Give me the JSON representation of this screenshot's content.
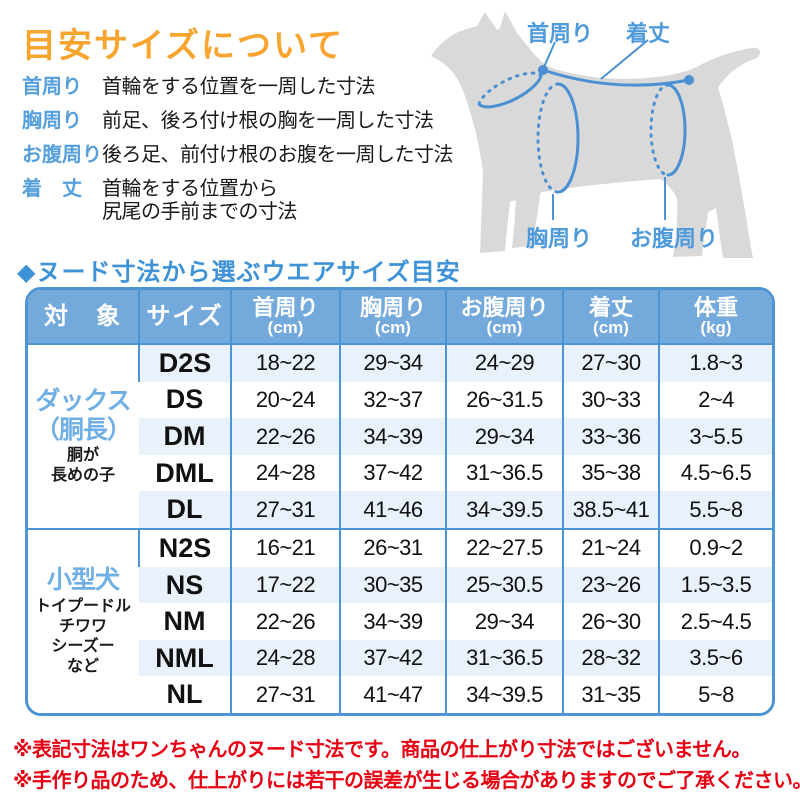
{
  "page": {
    "title": "目安サイズについて",
    "section_title": "◆ヌード寸法から選ぶウエアサイズ目安"
  },
  "legend": {
    "items": [
      {
        "term": "首周り",
        "desc": "首輪をする位置を一周した寸法"
      },
      {
        "term": "胸周り",
        "desc": "前足、後ろ付け根の胸を一周した寸法"
      },
      {
        "term": "お腹周り",
        "desc": "後ろ足、前付け根のお腹を一周した寸法"
      },
      {
        "term": "着　丈",
        "desc": "首輪をする位置から\n尻尾の手前までの寸法"
      }
    ]
  },
  "diagram": {
    "labels": {
      "neck": "首周り",
      "length": "着丈",
      "chest": "胸周り",
      "belly": "お腹周り"
    }
  },
  "table": {
    "headers": [
      {
        "label": "対　象",
        "unit": ""
      },
      {
        "label": "サイズ",
        "unit": ""
      },
      {
        "label": "首周り",
        "unit": "(cm)"
      },
      {
        "label": "胸周り",
        "unit": "(cm)"
      },
      {
        "label": "お腹周り",
        "unit": "(cm)"
      },
      {
        "label": "着丈",
        "unit": "(cm)"
      },
      {
        "label": "体重",
        "unit": "(kg)"
      }
    ],
    "groups": [
      {
        "name": "ダックス\n（胴長）",
        "sub": "胴が\n長めの子",
        "rows": [
          {
            "size": "D2S",
            "values": [
              "18~22",
              "29~34",
              "24~29",
              "27~30",
              "1.8~3"
            ]
          },
          {
            "size": "DS",
            "values": [
              "20~24",
              "32~37",
              "26~31.5",
              "30~33",
              "2~4"
            ]
          },
          {
            "size": "DM",
            "values": [
              "22~26",
              "34~39",
              "29~34",
              "33~36",
              "3~5.5"
            ]
          },
          {
            "size": "DML",
            "values": [
              "24~28",
              "37~42",
              "31~36.5",
              "35~38",
              "4.5~6.5"
            ]
          },
          {
            "size": "DL",
            "values": [
              "27~31",
              "41~46",
              "34~39.5",
              "38.5~41",
              "5.5~8"
            ]
          }
        ]
      },
      {
        "name": "小型犬",
        "sub": "トイプードル\nチワワ\nシーズー\nなど",
        "rows": [
          {
            "size": "N2S",
            "values": [
              "16~21",
              "26~31",
              "22~27.5",
              "21~24",
              "0.9~2"
            ]
          },
          {
            "size": "NS",
            "values": [
              "17~22",
              "30~35",
              "25~30.5",
              "23~26",
              "1.5~3.5"
            ]
          },
          {
            "size": "NM",
            "values": [
              "22~26",
              "34~39",
              "29~34",
              "26~30",
              "2.5~4.5"
            ]
          },
          {
            "size": "NML",
            "values": [
              "24~28",
              "37~42",
              "31~36.5",
              "28~32",
              "3.5~6"
            ]
          },
          {
            "size": "NL",
            "values": [
              "27~31",
              "41~47",
              "34~39.5",
              "31~35",
              "5~8"
            ]
          }
        ]
      }
    ]
  },
  "notes": [
    "※表記寸法はワンちゃんのヌード寸法です。商品の仕上がり寸法ではございません。",
    "※手作り品のため、仕上がりには若干の誤差が生じる場合がありますのでご了承ください。"
  ],
  "colors": {
    "title_orange": "#F7A52F",
    "legend_blue": "#55A0DC",
    "section_blue": "#3E92D7",
    "table_border_blue": "#4D94D4",
    "header_bg_blue": "#74A9DC",
    "row_alt_blue": "#E9F2FB",
    "group_label_blue": "#6FAFE5",
    "diagram_line_blue": "#4A90D2",
    "dog_gray": "#D9D9D9",
    "note_red": "#E60012"
  }
}
